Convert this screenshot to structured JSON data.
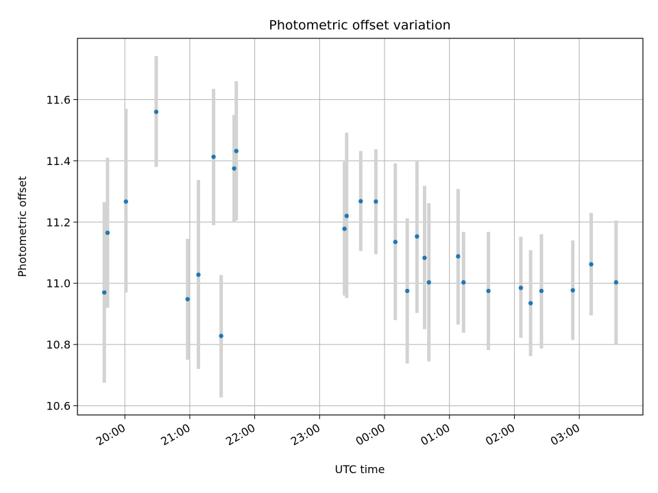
{
  "chart_data": {
    "type": "scatter",
    "title": "Photometric offset variation",
    "xlabel": "UTC time",
    "ylabel": "Photometric offset",
    "x_ticks": [
      "20:00",
      "21:00",
      "22:00",
      "23:00",
      "00:00",
      "01:00",
      "02:00",
      "03:00"
    ],
    "y_ticks": [
      "10.6",
      "10.8",
      "11.0",
      "11.2",
      "11.4",
      "11.6"
    ],
    "x_tick_hours": [
      20,
      21,
      22,
      23,
      24,
      25,
      26,
      27
    ],
    "y_tick_values": [
      10.6,
      10.8,
      11.0,
      11.2,
      11.4,
      11.6
    ],
    "xlim": [
      19.27,
      27.98
    ],
    "ylim": [
      10.57,
      11.8
    ],
    "grid": true,
    "marker_color": "#1f77b4",
    "errorbar_color": "#d3d3d3",
    "points": [
      {
        "t": "19:41",
        "y": 10.97,
        "ylo": 10.675,
        "yhi": 11.265
      },
      {
        "t": "19:44",
        "y": 11.165,
        "ylo": 10.92,
        "yhi": 11.41
      },
      {
        "t": "20:01",
        "y": 11.267,
        "ylo": 10.97,
        "yhi": 11.57
      },
      {
        "t": "20:29",
        "y": 11.56,
        "ylo": 11.38,
        "yhi": 11.742
      },
      {
        "t": "20:58",
        "y": 10.948,
        "ylo": 10.75,
        "yhi": 11.145
      },
      {
        "t": "21:08",
        "y": 11.028,
        "ylo": 10.72,
        "yhi": 11.337
      },
      {
        "t": "21:22",
        "y": 11.413,
        "ylo": 11.19,
        "yhi": 11.635
      },
      {
        "t": "21:29",
        "y": 10.828,
        "ylo": 10.627,
        "yhi": 11.027
      },
      {
        "t": "21:41",
        "y": 11.375,
        "ylo": 11.2,
        "yhi": 11.55
      },
      {
        "t": "21:43",
        "y": 11.432,
        "ylo": 11.205,
        "yhi": 11.66
      },
      {
        "t": "23:23",
        "y": 11.178,
        "ylo": 10.96,
        "yhi": 11.397
      },
      {
        "t": "23:25",
        "y": 11.22,
        "ylo": 10.952,
        "yhi": 11.492
      },
      {
        "t": "23:38",
        "y": 11.268,
        "ylo": 11.105,
        "yhi": 11.432
      },
      {
        "t": "23:52",
        "y": 11.267,
        "ylo": 11.095,
        "yhi": 11.438
      },
      {
        "t": "00:10",
        "y": 11.135,
        "ylo": 10.88,
        "yhi": 11.392
      },
      {
        "t": "00:21",
        "y": 10.975,
        "ylo": 10.738,
        "yhi": 11.212
      },
      {
        "t": "00:30",
        "y": 11.153,
        "ylo": 10.903,
        "yhi": 11.398
      },
      {
        "t": "00:37",
        "y": 11.083,
        "ylo": 10.85,
        "yhi": 11.318
      },
      {
        "t": "00:41",
        "y": 11.003,
        "ylo": 10.745,
        "yhi": 11.262
      },
      {
        "t": "01:08",
        "y": 11.088,
        "ylo": 10.865,
        "yhi": 11.308
      },
      {
        "t": "01:13",
        "y": 11.003,
        "ylo": 10.838,
        "yhi": 11.168
      },
      {
        "t": "01:36",
        "y": 10.975,
        "ylo": 10.782,
        "yhi": 11.168
      },
      {
        "t": "02:06",
        "y": 10.985,
        "ylo": 10.822,
        "yhi": 11.152
      },
      {
        "t": "02:15",
        "y": 10.935,
        "ylo": 10.762,
        "yhi": 11.108
      },
      {
        "t": "02:25",
        "y": 10.975,
        "ylo": 10.787,
        "yhi": 11.16
      },
      {
        "t": "02:54",
        "y": 10.977,
        "ylo": 10.815,
        "yhi": 11.14
      },
      {
        "t": "03:11",
        "y": 11.062,
        "ylo": 10.895,
        "yhi": 11.23
      },
      {
        "t": "03:34",
        "y": 11.003,
        "ylo": 10.8,
        "yhi": 11.205
      }
    ]
  }
}
